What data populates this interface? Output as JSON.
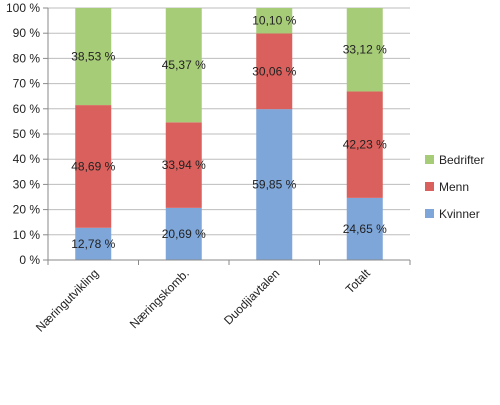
{
  "chart_data": {
    "type": "bar",
    "stacked": true,
    "categories": [
      "Næringutvikling",
      "Næringskomb.",
      "Duodjiavtalen",
      "Totalt"
    ],
    "series": [
      {
        "name": "Kvinner",
        "values": [
          12.78,
          20.69,
          59.85,
          24.65
        ],
        "labels": [
          "12,78 %",
          "20,69 %",
          "59,85 %",
          "24,65 %"
        ],
        "color": "#7ea6d9"
      },
      {
        "name": "Menn",
        "values": [
          48.69,
          33.94,
          30.06,
          42.23
        ],
        "labels": [
          "48,69 %",
          "33,94 %",
          "30,06 %",
          "42,23 %"
        ],
        "color": "#d9605c"
      },
      {
        "name": "Bedrifter",
        "values": [
          38.53,
          45.37,
          10.1,
          33.12
        ],
        "labels": [
          "38,53 %",
          "45,37 %",
          "10,10 %",
          "33,12 %"
        ],
        "color": "#a7cc78"
      }
    ],
    "yticks": [
      "0 %",
      "10 %",
      "20 %",
      "30 %",
      "40 %",
      "50 %",
      "60 %",
      "70 %",
      "80 %",
      "90 %",
      "100 %"
    ],
    "ylim": [
      0,
      100
    ],
    "legend_position": "right",
    "grid": true,
    "title": "",
    "xlabel": "",
    "ylabel": ""
  }
}
